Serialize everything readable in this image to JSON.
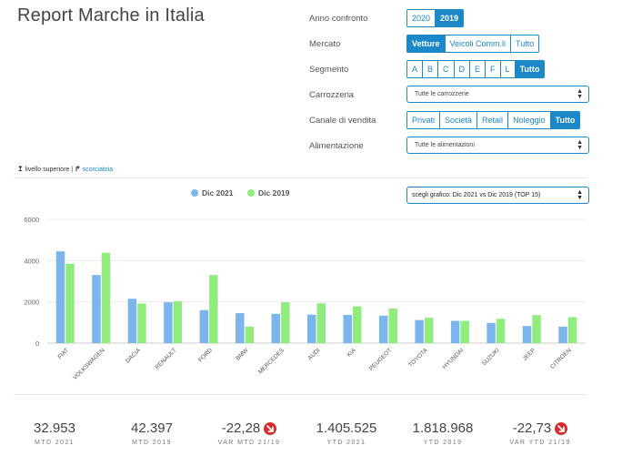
{
  "header": {
    "title": "Report Marche in Italia"
  },
  "filters": {
    "anno": {
      "label": "Anno confronto",
      "options": [
        "2020",
        "2019"
      ],
      "active": "2019"
    },
    "mercato": {
      "label": "Mercato",
      "options": [
        "Vetture",
        "Veicoli Comm.li",
        "Tutto"
      ],
      "active": "Vetture"
    },
    "segmento": {
      "label": "Segmento",
      "options": [
        "A",
        "B",
        "C",
        "D",
        "E",
        "F",
        "L",
        "Tutto"
      ],
      "active": "Tutto"
    },
    "carrozzeria": {
      "label": "Carrozzeria",
      "value": "Tutte le carrozzerie"
    },
    "canale": {
      "label": "Canale di vendita",
      "options": [
        "Privati",
        "Società",
        "Retail",
        "Noleggio",
        "Tutto"
      ],
      "active": "Tutto"
    },
    "alimentazione": {
      "label": "Alimentazione",
      "value": "Tutte le alimentazioni"
    }
  },
  "breadcrumb": {
    "up": "livello superiore",
    "sep": " | ",
    "shortcut": "scorciatoia"
  },
  "chart_select": {
    "value": "scegli grafico: Dic 2021 vs Dic 2019 (TOP 15)"
  },
  "colors": {
    "accent": "#1a88c9",
    "series1": "#7cb5ec",
    "series2": "#90ed7d",
    "negative": "#d92b2b"
  },
  "chart_data": {
    "type": "bar",
    "categories": [
      "FIAT",
      "VOLKSWAGEN",
      "DACIA",
      "RENAULT",
      "FORD",
      "BMW",
      "MERCEDES",
      "AUDI",
      "KIA",
      "PEUGEOT",
      "TOYOTA",
      "HYUNDAI",
      "SUZUKI",
      "JEEP",
      "CITROEN"
    ],
    "series": [
      {
        "name": "Dic 2021",
        "values": [
          4450,
          3300,
          2150,
          1980,
          1600,
          1450,
          1420,
          1380,
          1370,
          1330,
          1120,
          1080,
          980,
          830,
          800
        ]
      },
      {
        "name": "Dic 2019",
        "values": [
          3850,
          4380,
          1920,
          2030,
          3300,
          800,
          1980,
          1930,
          1780,
          1680,
          1230,
          1080,
          1180,
          1360,
          1260
        ]
      }
    ],
    "ylim": [
      0,
      6000
    ],
    "yticks": [
      "0",
      "2000",
      "4000",
      "6000"
    ],
    "grid": true,
    "legend": "top-center"
  },
  "kpis": [
    {
      "value": "32.953",
      "label": "MTD 2021"
    },
    {
      "value": "42.397",
      "label": "MTD 2019"
    },
    {
      "value": "-22,28",
      "label": "VAR MTD 21/19",
      "arrow": true
    },
    {
      "value": "1.405.525",
      "label": "YTD 2021"
    },
    {
      "value": "1.818.968",
      "label": "YTD 2019"
    },
    {
      "value": "-22,73",
      "label": "VAR YTD 21/19",
      "arrow": true
    }
  ]
}
